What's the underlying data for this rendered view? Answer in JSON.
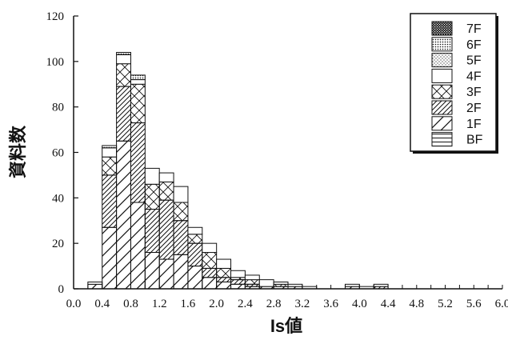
{
  "chart_data": {
    "type": "bar",
    "stacked": true,
    "title": "",
    "xlabel": "Is値",
    "ylabel": "資料数",
    "xlim": [
      0.0,
      6.0
    ],
    "ylim": [
      0,
      120
    ],
    "bin_width": 0.2,
    "x_ticks": [
      "0.0",
      "0.4",
      "0.8",
      "1.2",
      "1.6",
      "2.0",
      "2.4",
      "2.8",
      "3.2",
      "3.6",
      "4.0",
      "4.4",
      "4.8",
      "5.2",
      "5.6",
      "6.0"
    ],
    "y_ticks": [
      "0",
      "20",
      "40",
      "60",
      "80",
      "100",
      "120"
    ],
    "legend_position": "top-right",
    "x": [
      0.2,
      0.4,
      0.6,
      0.8,
      1.0,
      1.2,
      1.4,
      1.6,
      1.8,
      2.0,
      2.2,
      2.4,
      2.6,
      2.8,
      3.0,
      3.2,
      3.4,
      3.6,
      3.8,
      4.0,
      4.2
    ],
    "series": [
      {
        "name": "BF",
        "values": [
          0,
          0,
          0,
          0,
          0,
          0,
          0,
          0,
          0,
          0,
          0,
          0,
          0,
          0,
          0,
          0,
          0,
          0,
          0,
          0,
          0
        ]
      },
      {
        "name": "1F",
        "values": [
          2,
          27,
          65,
          38,
          16,
          13,
          15,
          10,
          5,
          3,
          2,
          1,
          1,
          1,
          1,
          0,
          0,
          0,
          1,
          0,
          0
        ]
      },
      {
        "name": "2F",
        "values": [
          0,
          23,
          24,
          35,
          19,
          26,
          15,
          10,
          4,
          2,
          2,
          1,
          0,
          0,
          0,
          0,
          0,
          0,
          0,
          0,
          1
        ]
      },
      {
        "name": "3F",
        "values": [
          0,
          8,
          10,
          17,
          11,
          8,
          8,
          4,
          7,
          4,
          1,
          2,
          0,
          1,
          0,
          0,
          0,
          0,
          0,
          0,
          0
        ]
      },
      {
        "name": "4F",
        "values": [
          1,
          4,
          4,
          2,
          7,
          4,
          7,
          3,
          4,
          4,
          3,
          2,
          3,
          1,
          1,
          1,
          0,
          0,
          1,
          1,
          1
        ]
      },
      {
        "name": "5F",
        "values": [
          0,
          0,
          0,
          0,
          0,
          0,
          0,
          0,
          0,
          0,
          0,
          0,
          0,
          0,
          0,
          0,
          0,
          0,
          0,
          0,
          0
        ]
      },
      {
        "name": "6F",
        "values": [
          0,
          1,
          1,
          2,
          0,
          0,
          0,
          0,
          0,
          0,
          0,
          0,
          0,
          0,
          0,
          0,
          0,
          0,
          0,
          0,
          0
        ]
      },
      {
        "name": "7F",
        "values": [
          0,
          0,
          0,
          0,
          0,
          0,
          0,
          0,
          0,
          0,
          0,
          0,
          0,
          0,
          0,
          0,
          0,
          0,
          0,
          0,
          0
        ]
      }
    ],
    "grid": false
  }
}
